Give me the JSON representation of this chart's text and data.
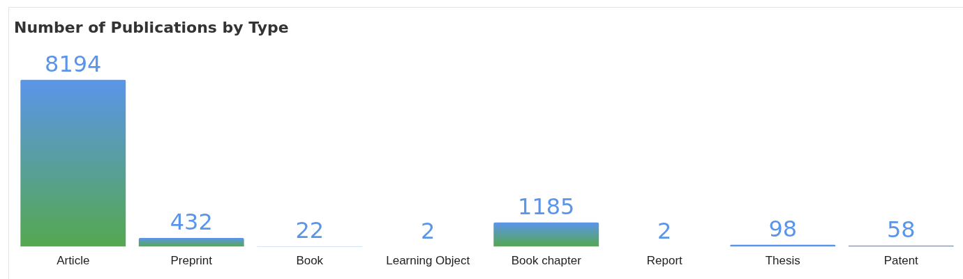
{
  "chart_data": {
    "type": "bar",
    "title": "Number of Publications by Type",
    "categories": [
      "Article",
      "Preprint",
      "Book",
      "Learning Object",
      "Book chapter",
      "Report",
      "Thesis",
      "Patent"
    ],
    "values": [
      8194,
      432,
      22,
      2,
      1185,
      2,
      98,
      58
    ],
    "color": "#5b95ea",
    "data_labels": true,
    "grid": false,
    "legend": false
  }
}
